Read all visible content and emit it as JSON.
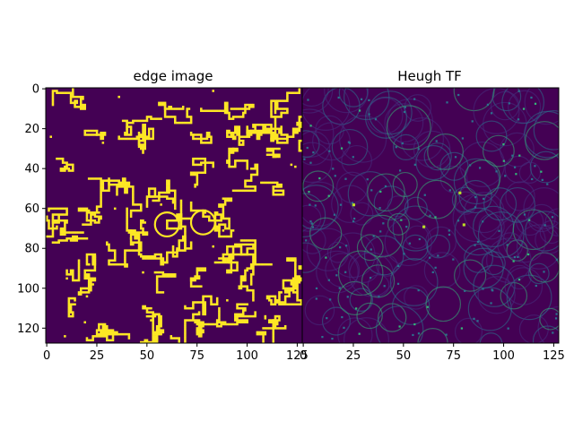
{
  "chart_data": [
    {
      "type": "heatmap",
      "title": "edge image",
      "xlabel": "",
      "ylabel": "",
      "xlim": [
        0,
        128
      ],
      "ylim": [
        128,
        0
      ],
      "xticks": [
        0,
        25,
        50,
        75,
        100,
        125
      ],
      "yticks": [
        0,
        20,
        40,
        60,
        80,
        100,
        120
      ],
      "colormap": "binary-viridis",
      "description_values": "binary edge map (0 background, 1 edge)",
      "circles": [
        {
          "cx": 60,
          "cy": 68,
          "r": 6
        },
        {
          "cx": 78,
          "cy": 67,
          "r": 6
        }
      ]
    },
    {
      "type": "heatmap",
      "title": "Heugh TF",
      "xlabel": "",
      "ylabel": "",
      "xlim": [
        0,
        128
      ],
      "ylim": [
        128,
        0
      ],
      "xticks": [
        0,
        25,
        50,
        75,
        100,
        125
      ],
      "colormap": "viridis",
      "peaks": [
        {
          "x": 60,
          "y": 69
        },
        {
          "x": 80,
          "y": 68
        },
        {
          "x": 78,
          "y": 52
        },
        {
          "x": 25,
          "y": 58
        }
      ]
    }
  ],
  "colors": {
    "background": "#440154",
    "edge": "#fde725",
    "low": "#46307e",
    "mid": "#2c728e",
    "high": "#35b779",
    "peak": "#bddf26"
  }
}
